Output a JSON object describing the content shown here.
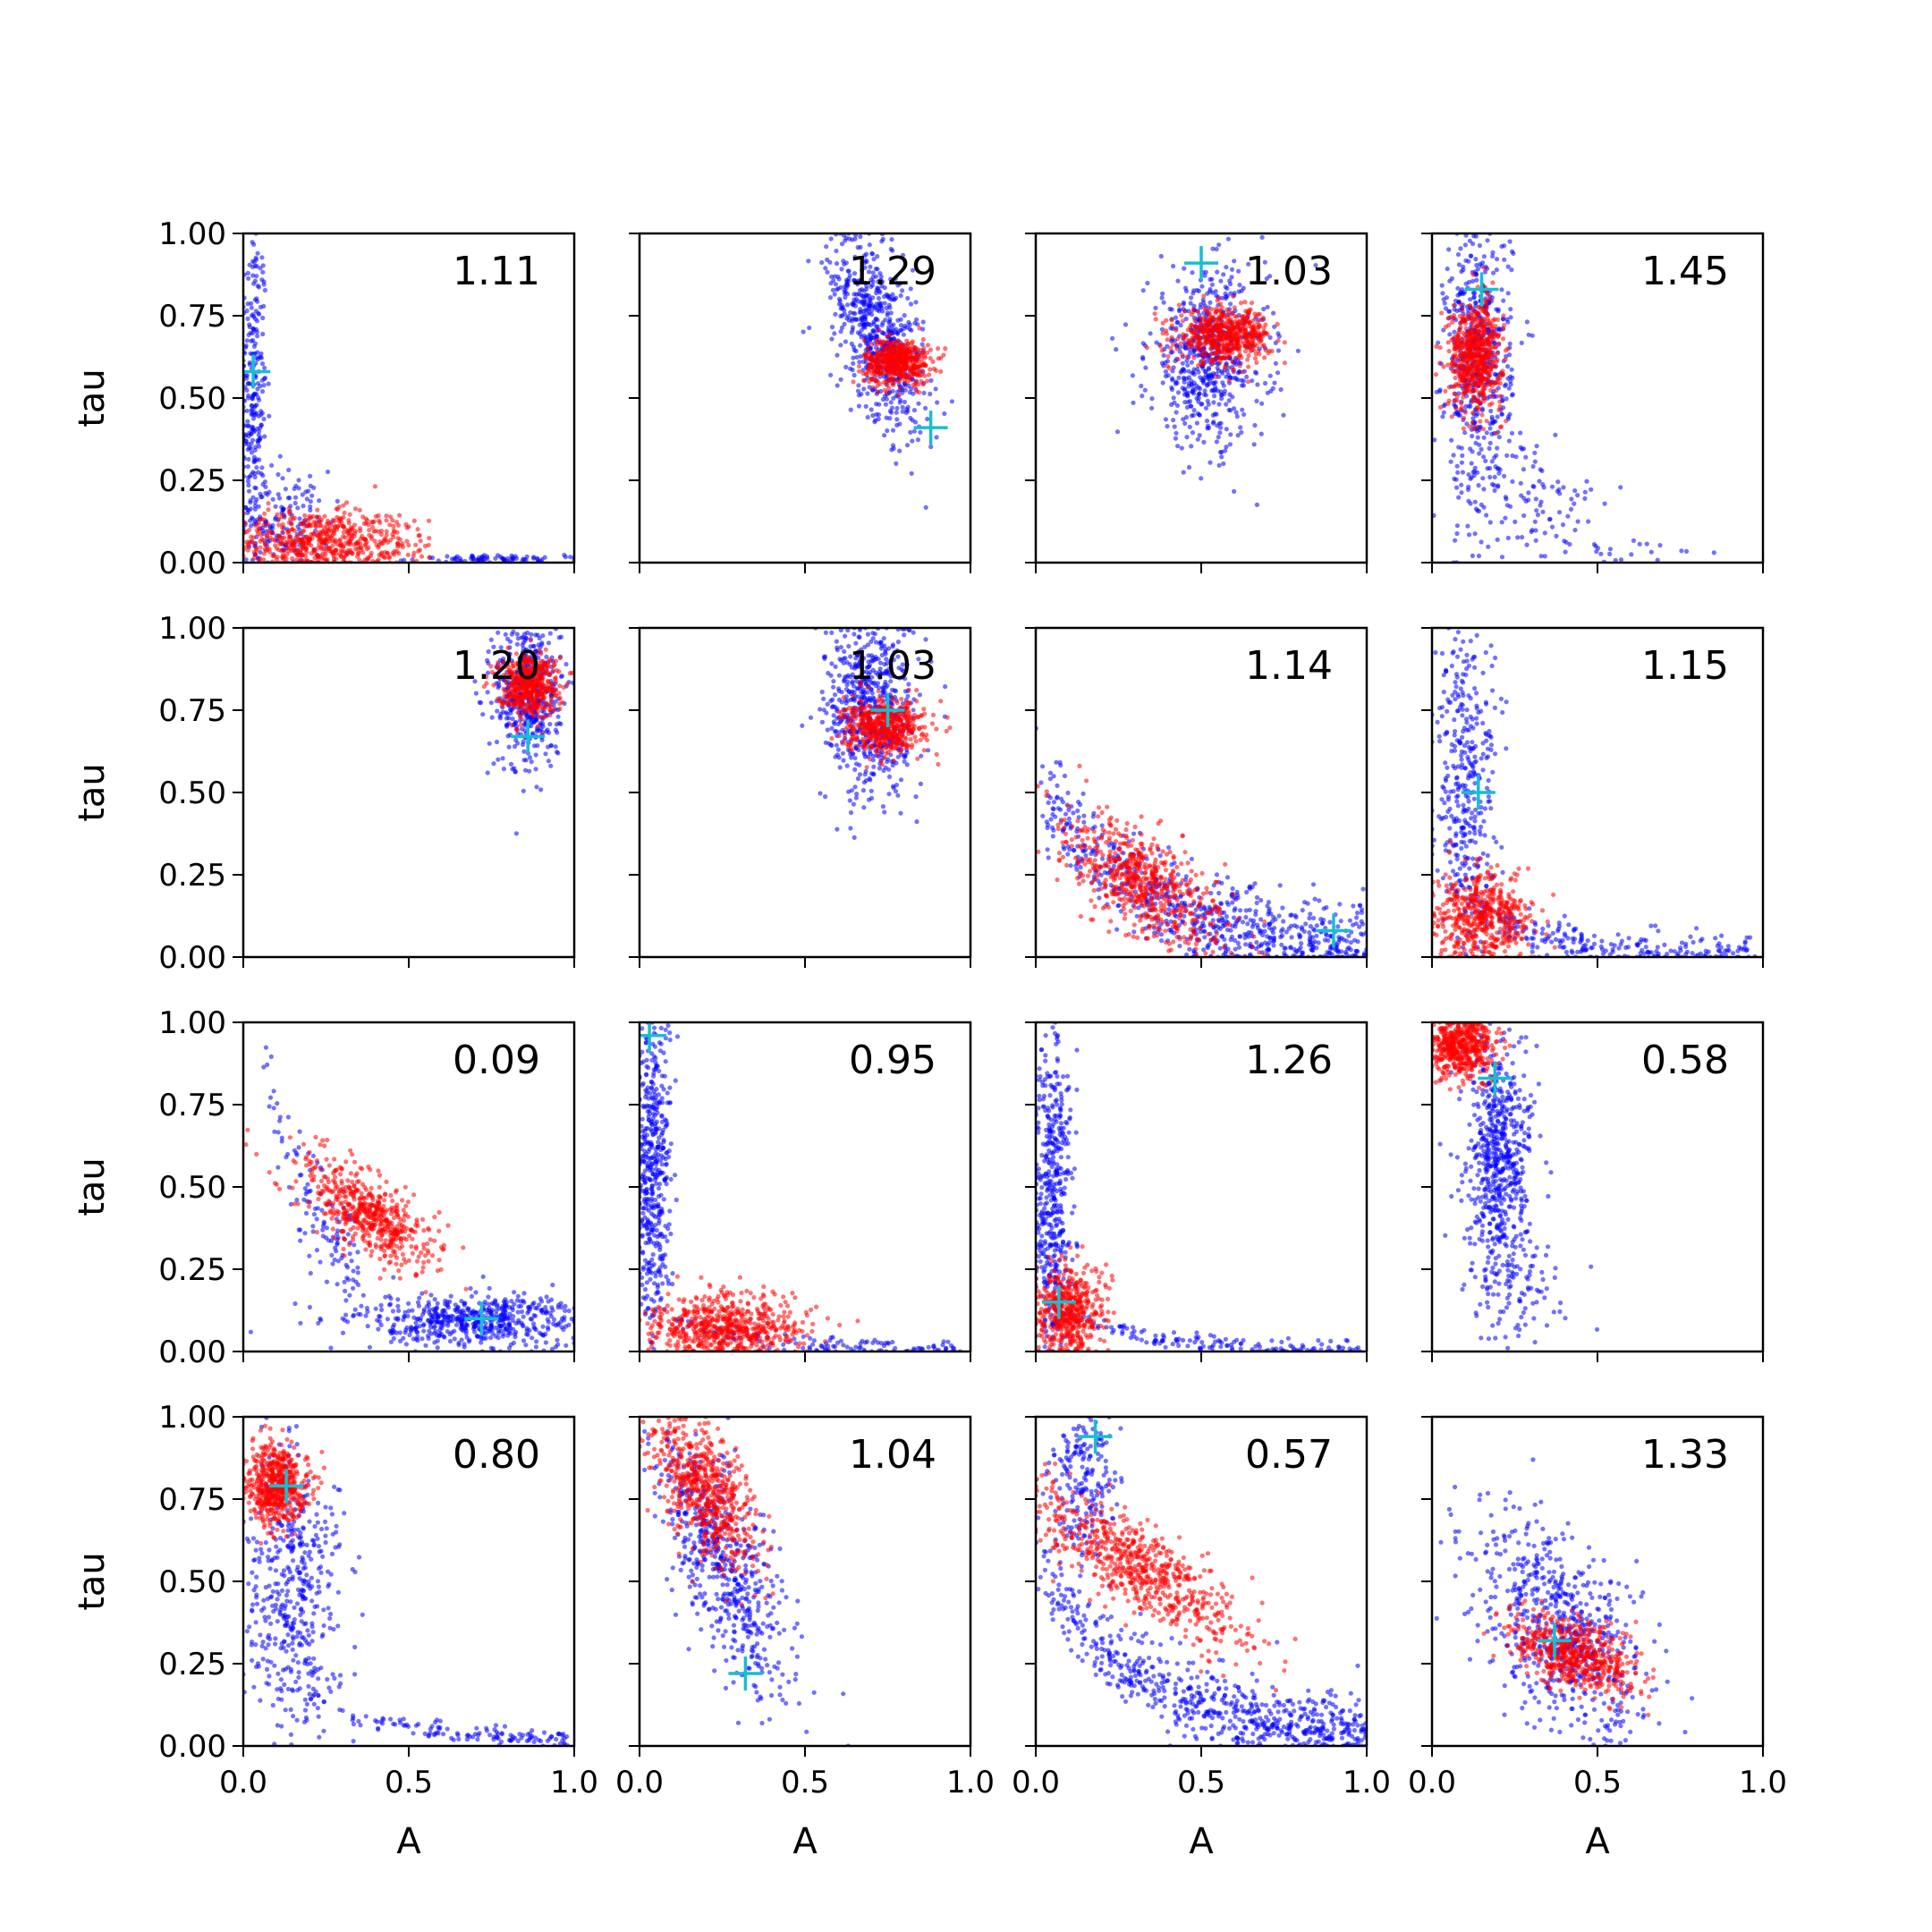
{
  "chart_data": {
    "type": "scatter",
    "layout": {
      "rows": 4,
      "cols": 4
    },
    "xlabel": "A",
    "ylabel": "tau",
    "xlim": [
      0,
      1
    ],
    "ylim": [
      0,
      1
    ],
    "x_ticks": [
      "0.0",
      "0.5",
      "1.0"
    ],
    "y_ticks": [
      "0.00",
      "0.25",
      "0.50",
      "0.75",
      "1.00"
    ],
    "grid": false,
    "colors": {
      "series_a": "#0000ff",
      "series_b": "#ff0000",
      "marker": "#17becf"
    },
    "panels": [
      {
        "value": "1.11",
        "marker": [
          0.03,
          0.58
        ],
        "blue": [
          {
            "type": "gauss",
            "cx": 0.03,
            "cy": 0.5,
            "sx": 0.02,
            "sy": 0.28,
            "n": 260
          },
          {
            "type": "gauss",
            "cx": 0.12,
            "cy": 0.12,
            "sx": 0.07,
            "sy": 0.08,
            "n": 140
          },
          {
            "type": "gauss",
            "cx": 0.78,
            "cy": 0.01,
            "sx": 0.13,
            "sy": 0.006,
            "n": 80
          }
        ],
        "red": [
          {
            "type": "gauss",
            "cx": 0.2,
            "cy": 0.06,
            "sx": 0.12,
            "sy": 0.05,
            "n": 420
          },
          {
            "type": "gauss",
            "cx": 0.4,
            "cy": 0.06,
            "sx": 0.1,
            "sy": 0.05,
            "n": 130
          }
        ]
      },
      {
        "value": "1.29",
        "marker": [
          0.88,
          0.41
        ],
        "blue": [
          {
            "type": "corr",
            "cx": 0.72,
            "cy": 0.7,
            "sx": 0.07,
            "sy": 0.15,
            "rho": -0.55,
            "n": 650
          }
        ],
        "red": [
          {
            "type": "gauss",
            "cx": 0.78,
            "cy": 0.61,
            "sx": 0.05,
            "sy": 0.035,
            "n": 500
          }
        ]
      },
      {
        "value": "1.03",
        "marker": [
          0.5,
          0.91
        ],
        "blue": [
          {
            "type": "gauss",
            "cx": 0.52,
            "cy": 0.62,
            "sx": 0.09,
            "sy": 0.13,
            "n": 600
          }
        ],
        "red": [
          {
            "type": "gauss",
            "cx": 0.57,
            "cy": 0.69,
            "sx": 0.07,
            "sy": 0.04,
            "n": 550
          }
        ]
      },
      {
        "value": "1.45",
        "marker": [
          0.15,
          0.83
        ],
        "blue": [
          {
            "type": "gauss",
            "cx": 0.14,
            "cy": 0.62,
            "sx": 0.05,
            "sy": 0.2,
            "n": 520
          },
          {
            "type": "gauss",
            "cx": 0.28,
            "cy": 0.18,
            "sx": 0.12,
            "sy": 0.1,
            "n": 120
          },
          {
            "type": "gauss",
            "cx": 0.65,
            "cy": 0.03,
            "sx": 0.12,
            "sy": 0.02,
            "n": 20
          }
        ],
        "red": [
          {
            "type": "gauss",
            "cx": 0.13,
            "cy": 0.63,
            "sx": 0.04,
            "sy": 0.08,
            "n": 600
          }
        ]
      },
      {
        "value": "1.20",
        "marker": [
          0.86,
          0.67
        ],
        "blue": [
          {
            "type": "gauss",
            "cx": 0.86,
            "cy": 0.8,
            "sx": 0.05,
            "sy": 0.12,
            "n": 450
          }
        ],
        "red": [
          {
            "type": "gauss",
            "cx": 0.86,
            "cy": 0.83,
            "sx": 0.045,
            "sy": 0.045,
            "n": 500
          }
        ]
      },
      {
        "value": "1.03",
        "marker": [
          0.75,
          0.75
        ],
        "blue": [
          {
            "type": "gauss",
            "cx": 0.7,
            "cy": 0.75,
            "sx": 0.07,
            "sy": 0.14,
            "n": 600
          }
        ],
        "red": [
          {
            "type": "gauss",
            "cx": 0.74,
            "cy": 0.7,
            "sx": 0.06,
            "sy": 0.04,
            "n": 500
          }
        ]
      },
      {
        "value": "1.14",
        "marker": [
          0.9,
          0.08
        ],
        "blue": [
          {
            "type": "curve",
            "x0": 0.0,
            "x1": 1.0,
            "a": 0.55,
            "k": 3.2,
            "spread": 0.07,
            "n": 700
          }
        ],
        "red": [
          {
            "type": "corr",
            "cx": 0.33,
            "cy": 0.22,
            "sx": 0.12,
            "sy": 0.1,
            "rho": -0.6,
            "n": 600
          }
        ]
      },
      {
        "value": "1.15",
        "marker": [
          0.14,
          0.5
        ],
        "blue": [
          {
            "type": "gauss",
            "cx": 0.1,
            "cy": 0.55,
            "sx": 0.05,
            "sy": 0.28,
            "n": 350
          },
          {
            "type": "curve",
            "x0": 0.05,
            "x1": 0.98,
            "a": 0.25,
            "k": 5.0,
            "spread": 0.03,
            "n": 250
          }
        ],
        "red": [
          {
            "type": "gauss",
            "cx": 0.15,
            "cy": 0.12,
            "sx": 0.08,
            "sy": 0.07,
            "n": 500
          }
        ]
      },
      {
        "value": "0.09",
        "marker": [
          0.72,
          0.1
        ],
        "blue": [
          {
            "type": "gauss",
            "cx": 0.68,
            "cy": 0.09,
            "sx": 0.18,
            "sy": 0.04,
            "n": 550
          },
          {
            "type": "curve",
            "x0": 0.05,
            "x1": 0.35,
            "a": 0.95,
            "k": 4.5,
            "spread": 0.08,
            "n": 120
          }
        ],
        "red": [
          {
            "type": "corr",
            "cx": 0.38,
            "cy": 0.42,
            "sx": 0.1,
            "sy": 0.08,
            "rho": -0.7,
            "n": 550
          }
        ]
      },
      {
        "value": "0.95",
        "marker": [
          0.03,
          0.96
        ],
        "blue": [
          {
            "type": "gauss",
            "cx": 0.04,
            "cy": 0.55,
            "sx": 0.025,
            "sy": 0.28,
            "n": 450
          },
          {
            "type": "curve",
            "x0": 0.1,
            "x1": 0.98,
            "a": 0.1,
            "k": 4.0,
            "spread": 0.015,
            "n": 120
          }
        ],
        "red": [
          {
            "type": "gauss",
            "cx": 0.25,
            "cy": 0.07,
            "sx": 0.12,
            "sy": 0.05,
            "n": 600
          }
        ]
      },
      {
        "value": "1.26",
        "marker": [
          0.07,
          0.15
        ],
        "blue": [
          {
            "type": "gauss",
            "cx": 0.05,
            "cy": 0.5,
            "sx": 0.03,
            "sy": 0.3,
            "n": 450
          },
          {
            "type": "curve",
            "x0": 0.1,
            "x1": 0.98,
            "a": 0.12,
            "k": 4.5,
            "spread": 0.015,
            "n": 150
          }
        ],
        "red": [
          {
            "type": "gauss",
            "cx": 0.1,
            "cy": 0.12,
            "sx": 0.05,
            "sy": 0.07,
            "n": 500
          }
        ]
      },
      {
        "value": "0.58",
        "marker": [
          0.19,
          0.83
        ],
        "blue": [
          {
            "type": "gauss",
            "cx": 0.2,
            "cy": 0.6,
            "sx": 0.05,
            "sy": 0.18,
            "n": 600
          },
          {
            "type": "gauss",
            "cx": 0.27,
            "cy": 0.2,
            "sx": 0.08,
            "sy": 0.1,
            "n": 100
          }
        ],
        "red": [
          {
            "type": "gauss",
            "cx": 0.09,
            "cy": 0.93,
            "sx": 0.05,
            "sy": 0.05,
            "n": 500
          }
        ]
      },
      {
        "value": "0.80",
        "marker": [
          0.13,
          0.79
        ],
        "blue": [
          {
            "type": "gauss",
            "cx": 0.15,
            "cy": 0.45,
            "sx": 0.07,
            "sy": 0.22,
            "n": 450
          },
          {
            "type": "curve",
            "x0": 0.3,
            "x1": 0.98,
            "a": 0.1,
            "k": 2.5,
            "spread": 0.015,
            "n": 120
          }
        ],
        "red": [
          {
            "type": "gauss",
            "cx": 0.1,
            "cy": 0.79,
            "sx": 0.045,
            "sy": 0.06,
            "n": 550
          }
        ]
      },
      {
        "value": "1.04",
        "marker": [
          0.32,
          0.22
        ],
        "blue": [
          {
            "type": "corr",
            "cx": 0.25,
            "cy": 0.55,
            "sx": 0.1,
            "sy": 0.2,
            "rho": -0.7,
            "n": 550
          }
        ],
        "red": [
          {
            "type": "corr",
            "cx": 0.2,
            "cy": 0.78,
            "sx": 0.08,
            "sy": 0.12,
            "rho": -0.6,
            "n": 600
          }
        ]
      },
      {
        "value": "0.57",
        "marker": [
          0.18,
          0.94
        ],
        "blue": [
          {
            "type": "curve",
            "x0": 0.0,
            "x1": 1.0,
            "a": 0.55,
            "k": 3.0,
            "spread": 0.06,
            "n": 650
          },
          {
            "type": "gauss",
            "cx": 0.15,
            "cy": 0.8,
            "sx": 0.05,
            "sy": 0.12,
            "n": 200
          }
        ],
        "red": [
          {
            "type": "corr",
            "cx": 0.3,
            "cy": 0.55,
            "sx": 0.17,
            "sy": 0.13,
            "rho": -0.85,
            "n": 650
          }
        ]
      },
      {
        "value": "1.33",
        "marker": [
          0.37,
          0.32
        ],
        "blue": [
          {
            "type": "corr",
            "cx": 0.38,
            "cy": 0.35,
            "sx": 0.13,
            "sy": 0.17,
            "rho": -0.55,
            "n": 650
          }
        ],
        "red": [
          {
            "type": "corr",
            "cx": 0.42,
            "cy": 0.28,
            "sx": 0.1,
            "sy": 0.06,
            "rho": -0.5,
            "n": 550
          }
        ]
      }
    ]
  }
}
